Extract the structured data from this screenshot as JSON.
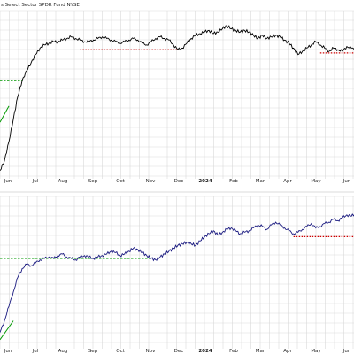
{
  "chart_data": [
    {
      "type": "line",
      "title": "s Select Sector SPDR Fund NYSE",
      "x_ticks": [
        "Jun",
        "Jul",
        "Aug",
        "Sep",
        "Oct",
        "Nov",
        "Dec",
        "2024",
        "Feb",
        "Mar",
        "Apr",
        "May",
        "Jun"
      ],
      "year_tick": "2024",
      "ylim": [
        0,
        100
      ],
      "grid": true,
      "series": [
        {
          "color": "#000000",
          "values": [
            4,
            10,
            22,
            36,
            50,
            60,
            66,
            71,
            76,
            80,
            82,
            83,
            84,
            84,
            85,
            86,
            87,
            86,
            85,
            84,
            84,
            85,
            86,
            87,
            86,
            85,
            84,
            83,
            84,
            85,
            86,
            85,
            83,
            82,
            84,
            86,
            87,
            86,
            85,
            82,
            79,
            80,
            83,
            86,
            88,
            89,
            90,
            91,
            89,
            90,
            92,
            94,
            92,
            91,
            90,
            91,
            90,
            88,
            86,
            88,
            86,
            87,
            88,
            87,
            85,
            83,
            80,
            76,
            78,
            80,
            82,
            84,
            82,
            80,
            78,
            80,
            79,
            78,
            81,
            80,
            79
          ]
        }
      ],
      "support_lines": [
        {
          "color": "#009900",
          "style": "dashed",
          "from": 0,
          "to": 5,
          "value": 60
        },
        {
          "color": "#cc0000",
          "style": "dotted",
          "from": 18,
          "to": 40,
          "value": 79
        },
        {
          "color": "#cc0000",
          "style": "dotted",
          "from": 72,
          "to": 80,
          "value": 77
        }
      ],
      "trend_lines": [
        {
          "color": "#009900",
          "style": "solid",
          "from": [
            0,
            34
          ],
          "to": [
            2,
            44
          ]
        }
      ]
    },
    {
      "type": "line",
      "x_ticks": [
        "Jun",
        "Jul",
        "Aug",
        "Sep",
        "Oct",
        "Nov",
        "Dec",
        "2024",
        "Feb",
        "Mar",
        "Apr",
        "May",
        "Jun"
      ],
      "year_tick": "2024",
      "ylim": [
        0,
        100
      ],
      "grid": true,
      "series": [
        {
          "color": "#1a1a80",
          "values": [
            10,
            18,
            28,
            38,
            48,
            54,
            57,
            56,
            58,
            60,
            61,
            62,
            61,
            63,
            64,
            62,
            61,
            60,
            62,
            63,
            62,
            61,
            62,
            63,
            64,
            66,
            65,
            63,
            64,
            66,
            68,
            67,
            65,
            63,
            61,
            60,
            62,
            64,
            66,
            68,
            70,
            71,
            72,
            71,
            70,
            73,
            76,
            78,
            80,
            77,
            79,
            81,
            82,
            80,
            78,
            79,
            80,
            82,
            84,
            83,
            81,
            84,
            86,
            84,
            82,
            80,
            78,
            79,
            81,
            83,
            85,
            82,
            83,
            85,
            86,
            88,
            87,
            89,
            91,
            90,
            92
          ]
        }
      ],
      "support_lines": [
        {
          "color": "#009900",
          "style": "dashed",
          "from": 0,
          "to": 34,
          "value": 61
        },
        {
          "color": "#cc0000",
          "style": "dotted",
          "from": 66,
          "to": 80,
          "value": 76
        }
      ],
      "trend_lines": [
        {
          "color": "#009900",
          "style": "solid",
          "from": [
            0,
            5
          ],
          "to": [
            3,
            18
          ]
        }
      ]
    }
  ]
}
